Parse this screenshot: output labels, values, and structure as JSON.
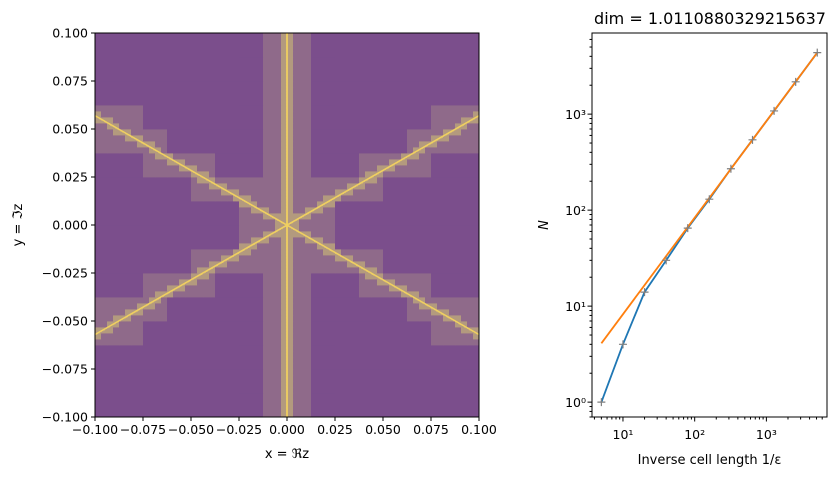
{
  "chart_data": [
    {
      "type": "heatmap",
      "title": "",
      "xlabel": "x = ℜz",
      "ylabel": "y = ℑz",
      "xlim": [
        -0.1,
        0.1
      ],
      "ylim": [
        -0.1,
        0.1
      ],
      "x_ticks": [
        -0.1,
        -0.075,
        -0.05,
        -0.025,
        0.0,
        0.025,
        0.05,
        0.075,
        0.1
      ],
      "x_tick_labels": [
        "−0.100",
        "−0.075",
        "−0.050",
        "−0.025",
        "0.000",
        "0.025",
        "0.050",
        "0.075",
        "0.100"
      ],
      "y_ticks": [
        0.1,
        0.075,
        0.05,
        0.025,
        0.0,
        -0.025,
        -0.05,
        -0.075,
        -0.1
      ],
      "y_tick_labels": [
        "0.100",
        "0.075",
        "0.050",
        "0.025",
        "0.000",
        "−0.025",
        "−0.050",
        "−0.075",
        "−0.100"
      ],
      "colormap": [
        "#7b4e8c",
        "#8f6a8a",
        "#b39a7e",
        "#e8c868"
      ],
      "features": {
        "vertical_line_x": 0.0,
        "diagonal_slope": 0.57
      }
    },
    {
      "type": "line",
      "title": "dim = 1.0110880329215637",
      "xlabel": "Inverse cell length 1/ε",
      "ylabel": "N",
      "xscale": "log",
      "yscale": "log",
      "xlim": [
        3.7,
        7000
      ],
      "ylim": [
        0.7,
        7000
      ],
      "x_ticks": [
        10,
        100,
        1000
      ],
      "x_tick_labels": [
        "10¹",
        "10²",
        "10³"
      ],
      "y_ticks": [
        1,
        10,
        100,
        1000
      ],
      "y_tick_labels": [
        "10⁰",
        "10¹",
        "10²",
        "10³"
      ],
      "series": [
        {
          "color": "#1f77b4",
          "marker": "+",
          "marker_color": "#7f7f7f",
          "x": [
            5,
            10,
            20,
            40,
            80,
            160,
            320,
            640,
            1280,
            2560,
            5120
          ],
          "y": [
            1,
            4,
            14,
            30,
            65,
            130,
            270,
            540,
            1080,
            2170,
            4370
          ]
        },
        {
          "color": "#ff7f0e",
          "marker": "",
          "x": [
            5,
            5120
          ],
          "y": [
            4.1,
            4370
          ]
        }
      ]
    }
  ]
}
